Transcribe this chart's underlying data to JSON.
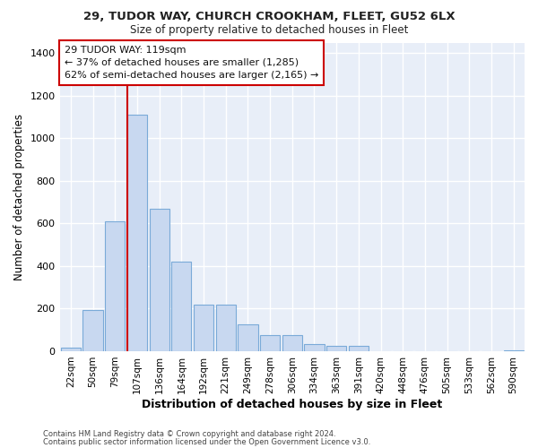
{
  "title1": "29, TUDOR WAY, CHURCH CROOKHAM, FLEET, GU52 6LX",
  "title2": "Size of property relative to detached houses in Fleet",
  "xlabel": "Distribution of detached houses by size in Fleet",
  "ylabel": "Number of detached properties",
  "bar_color": "#c8d8f0",
  "bar_edge_color": "#7aaad8",
  "plot_bg_color": "#e8eef8",
  "fig_bg_color": "#ffffff",
  "grid_color": "#ffffff",
  "annotation_box_color": "#ffffff",
  "annotation_border_color": "#cc0000",
  "vline_color": "#cc0000",
  "categories": [
    "22sqm",
    "50sqm",
    "79sqm",
    "107sqm",
    "136sqm",
    "164sqm",
    "192sqm",
    "221sqm",
    "249sqm",
    "278sqm",
    "306sqm",
    "334sqm",
    "363sqm",
    "391sqm",
    "420sqm",
    "448sqm",
    "476sqm",
    "505sqm",
    "533sqm",
    "562sqm",
    "590sqm"
  ],
  "values": [
    18,
    195,
    610,
    1110,
    670,
    420,
    220,
    220,
    125,
    75,
    75,
    35,
    25,
    25,
    0,
    0,
    0,
    0,
    0,
    0,
    5
  ],
  "ylim": [
    0,
    1450
  ],
  "yticks": [
    0,
    200,
    400,
    600,
    800,
    1000,
    1200,
    1400
  ],
  "vline_bar_index": 3,
  "annotation_text": "29 TUDOR WAY: 119sqm\n← 37% of detached houses are smaller (1,285)\n62% of semi-detached houses are larger (2,165) →",
  "footer1": "Contains HM Land Registry data © Crown copyright and database right 2024.",
  "footer2": "Contains public sector information licensed under the Open Government Licence v3.0."
}
